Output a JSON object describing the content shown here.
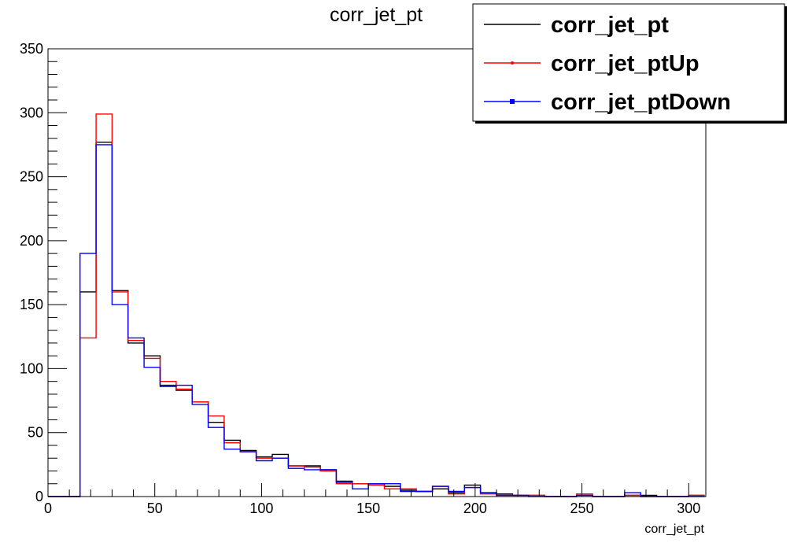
{
  "chart_data": {
    "type": "histogram",
    "title": "corr_jet_pt",
    "xlabel": "corr_jet_pt",
    "ylabel": "",
    "xlim": [
      0,
      308
    ],
    "ylim": [
      0,
      350
    ],
    "x_ticks": [
      0,
      50,
      100,
      150,
      200,
      250,
      300
    ],
    "y_ticks": [
      0,
      50,
      100,
      150,
      200,
      250,
      300,
      350
    ],
    "bin_edges": [
      0,
      7.5,
      15,
      22.5,
      30,
      37.5,
      45,
      52.5,
      60,
      67.5,
      75,
      82.5,
      90,
      97.5,
      105,
      112.5,
      120,
      127.5,
      135,
      142.5,
      150,
      157.5,
      165,
      172.5,
      180,
      187.5,
      195,
      202.5,
      210,
      217.5,
      225,
      232.5,
      240,
      247.5,
      255,
      262.5,
      270,
      277.5,
      285,
      292.5,
      300,
      307.5
    ],
    "grid": false,
    "legend_position": "top-right",
    "series": [
      {
        "name": "corr_jet_pt",
        "color": "#000000",
        "values": [
          0,
          0,
          160,
          277,
          161,
          120,
          110,
          87,
          83,
          74,
          58,
          44,
          36,
          31,
          33,
          24,
          24,
          21,
          12,
          10,
          10,
          8,
          5,
          4,
          6,
          3,
          9,
          3,
          2,
          1,
          1,
          0,
          0,
          1,
          0,
          0,
          1,
          1,
          0,
          0,
          1
        ]
      },
      {
        "name": "corr_jet_ptUp",
        "color": "#ff0000",
        "values": [
          0,
          0,
          124,
          299,
          160,
          122,
          108,
          90,
          84,
          74,
          63,
          42,
          35,
          30,
          30,
          24,
          23,
          20,
          10,
          10,
          9,
          6,
          6,
          4,
          8,
          2,
          7,
          2,
          1,
          1,
          1,
          0,
          0,
          2,
          0,
          0,
          1,
          0,
          0,
          0,
          1
        ]
      },
      {
        "name": "corr_jet_ptDown",
        "color": "#0000ff",
        "values": [
          0,
          0,
          190,
          275,
          150,
          124,
          101,
          86,
          87,
          72,
          54,
          37,
          35,
          28,
          30,
          22,
          21,
          21,
          11,
          6,
          10,
          10,
          4,
          4,
          8,
          4,
          7,
          3,
          1,
          1,
          0,
          0,
          0,
          1,
          0,
          0,
          3,
          0,
          0,
          0,
          0
        ]
      }
    ]
  }
}
